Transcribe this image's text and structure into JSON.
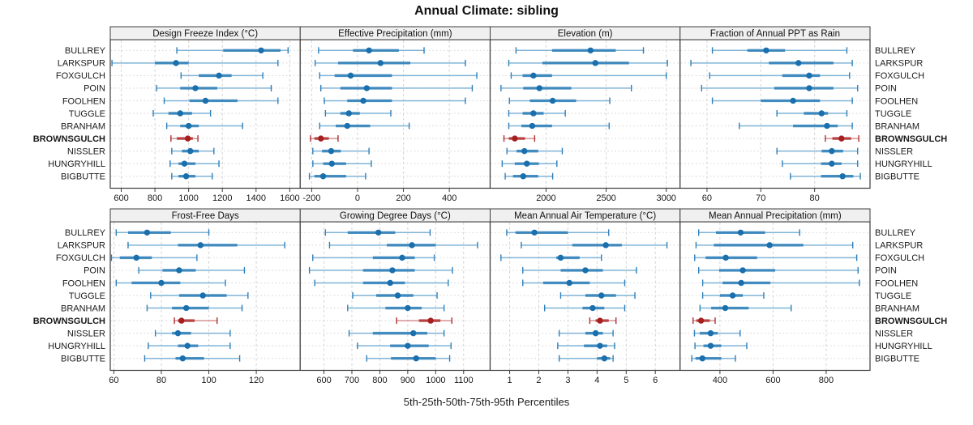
{
  "chart_data": {
    "type": "dot-interval",
    "title": "Annual Climate: sibling",
    "caption": "5th-25th-50th-75th-95th Percentiles",
    "percentile_levels": [
      5,
      25,
      50,
      75,
      95
    ],
    "legend_position": "none",
    "grid": true,
    "sites": [
      "BULLREY",
      "LARKSPUR",
      "FOXGULCH",
      "POIN",
      "FOOLHEN",
      "TUGGLE",
      "BRANHAM",
      "BROWNSGULCH",
      "NISSLER",
      "HUNGRYHILL",
      "BIGBUTTE"
    ],
    "highlight_site": "BROWNSGULCH",
    "colors": {
      "blue_dot": "#1a6fad",
      "blue_mid": "#2e7fb8",
      "blue_thin": "#7fb3d7",
      "red_dot": "#a51f1f",
      "red_mid": "#b03030",
      "red_thin": "#d49090",
      "strip_bg": "#f0f0f0",
      "border": "#3c3c3c",
      "grid": "#d2d2d2",
      "text": "#1a1a1a"
    },
    "panels": [
      {
        "title": "Design Freeze Index (°C)",
        "xlim": [
          535,
          1662
        ],
        "ticks": [
          600,
          800,
          1000,
          1200,
          1400,
          1600
        ],
        "tick_labels": [
          "600",
          "800",
          "1000",
          "1200",
          "1400",
          "1600"
        ],
        "values": [
          [
            930,
            1205,
            1430,
            1545,
            1590
          ],
          [
            545,
            800,
            925,
            1000,
            1530
          ],
          [
            955,
            1060,
            1180,
            1255,
            1440
          ],
          [
            810,
            950,
            1040,
            1170,
            1490
          ],
          [
            855,
            1005,
            1100,
            1290,
            1530
          ],
          [
            790,
            880,
            950,
            1020,
            1130
          ],
          [
            870,
            950,
            1000,
            1060,
            1320
          ],
          [
            895,
            930,
            995,
            1025,
            1055
          ],
          [
            900,
            960,
            1010,
            1060,
            1150
          ],
          [
            890,
            940,
            975,
            1040,
            1180
          ],
          [
            900,
            940,
            985,
            1040,
            1140
          ]
        ]
      },
      {
        "title": "Effective Precipitation (mm)",
        "xlim": [
          -250,
          578
        ],
        "ticks": [
          -200,
          0,
          200,
          400
        ],
        "tick_labels": [
          "-200",
          "0",
          "200",
          "400"
        ],
        "values": [
          [
            -170,
            -20,
            50,
            180,
            290
          ],
          [
            -185,
            -85,
            100,
            230,
            470
          ],
          [
            -165,
            -100,
            -30,
            150,
            520
          ],
          [
            -160,
            -75,
            40,
            150,
            500
          ],
          [
            -145,
            -45,
            25,
            150,
            470
          ],
          [
            -140,
            -75,
            -38,
            10,
            145
          ],
          [
            -165,
            -95,
            -45,
            55,
            225
          ],
          [
            -205,
            -188,
            -160,
            -125,
            -85
          ],
          [
            -195,
            -155,
            -115,
            -73,
            50
          ],
          [
            -195,
            -150,
            -112,
            -50,
            60
          ],
          [
            -210,
            -188,
            -150,
            -50,
            35
          ]
        ]
      },
      {
        "title": "Elevation (m)",
        "xlim": [
          1535,
          3115
        ],
        "ticks": [
          2000,
          2500,
          3000
        ],
        "tick_labels": [
          "2000",
          "2500",
          "3000"
        ],
        "values": [
          [
            1750,
            2050,
            2370,
            2580,
            2810
          ],
          [
            1690,
            1970,
            2410,
            2690,
            3010
          ],
          [
            1710,
            1805,
            1895,
            2050,
            3000
          ],
          [
            1625,
            1810,
            1945,
            2210,
            2710
          ],
          [
            1695,
            1865,
            2055,
            2250,
            2530
          ],
          [
            1690,
            1805,
            1895,
            1980,
            2160
          ],
          [
            1690,
            1795,
            1885,
            2050,
            2525
          ],
          [
            1650,
            1690,
            1740,
            1825,
            1905
          ],
          [
            1675,
            1755,
            1820,
            1935,
            2135
          ],
          [
            1635,
            1740,
            1840,
            1940,
            2090
          ],
          [
            1660,
            1725,
            1810,
            1935,
            2055
          ]
        ]
      },
      {
        "title": "Fraction of Annual PPT as Rain",
        "xlim": [
          55,
          90.3
        ],
        "ticks": [
          60,
          70,
          80
        ],
        "tick_labels": [
          "60",
          "70",
          "80"
        ],
        "values": [
          [
            61,
            67.5,
            71,
            74.5,
            86
          ],
          [
            57,
            71.5,
            77,
            83.5,
            87
          ],
          [
            60.5,
            74,
            79,
            81,
            86.5
          ],
          [
            59,
            72.5,
            79,
            83.5,
            88
          ],
          [
            61,
            70,
            76,
            81,
            87
          ],
          [
            73,
            78,
            81.3,
            82.5,
            86
          ],
          [
            66,
            76,
            82.3,
            84.3,
            87
          ],
          [
            82,
            83.3,
            85,
            86.8,
            88.2
          ],
          [
            73,
            81.3,
            83.2,
            85.3,
            88
          ],
          [
            74,
            81.2,
            83.2,
            85,
            88
          ],
          [
            75.5,
            81.2,
            85.2,
            87.2,
            88.5
          ]
        ]
      },
      {
        "title": "Frost-Free Days",
        "xlim": [
          58.5,
          138.5
        ],
        "ticks": [
          60,
          80,
          100,
          120
        ],
        "tick_labels": [
          "60",
          "80",
          "100",
          "120"
        ],
        "values": [
          [
            61,
            66,
            74,
            84,
            100
          ],
          [
            66,
            87,
            96.5,
            112,
            132
          ],
          [
            59,
            62.5,
            69.5,
            76,
            95
          ],
          [
            70.5,
            80.5,
            87.5,
            94.5,
            115
          ],
          [
            61,
            67.5,
            80,
            88,
            107
          ],
          [
            75.5,
            87.5,
            97.5,
            107.5,
            116.5
          ],
          [
            74,
            84.5,
            90.5,
            100,
            114
          ],
          [
            85.5,
            87,
            88.5,
            94,
            103.5
          ],
          [
            77.5,
            84.5,
            87,
            92.5,
            109
          ],
          [
            74.5,
            87,
            91,
            95.5,
            109
          ],
          [
            73,
            86,
            89,
            98,
            113
          ]
        ]
      },
      {
        "title": "Growing Degree Days (°C)",
        "xlim": [
          515,
          1195
        ],
        "ticks": [
          600,
          700,
          800,
          900,
          1000,
          1100
        ],
        "tick_labels": [
          "600",
          "700",
          "800",
          "900",
          "1000",
          "1100"
        ],
        "values": [
          [
            605,
            685,
            795,
            855,
            980
          ],
          [
            620,
            825,
            915,
            1000,
            1150
          ],
          [
            560,
            775,
            880,
            925,
            995
          ],
          [
            548,
            740,
            845,
            925,
            1060
          ],
          [
            567,
            740,
            837,
            890,
            1045
          ],
          [
            703,
            787,
            864,
            920,
            1005
          ],
          [
            685,
            820,
            900,
            950,
            1030
          ],
          [
            860,
            940,
            982,
            1017,
            1058
          ],
          [
            690,
            775,
            920,
            970,
            1030
          ],
          [
            720,
            837,
            900,
            975,
            1055
          ],
          [
            753,
            840,
            930,
            1000,
            1050
          ]
        ]
      },
      {
        "title": "Mean Annual Air Temperature (°C)",
        "xlim": [
          0.33,
          6.85
        ],
        "ticks": [
          1,
          2,
          3,
          4,
          5,
          6
        ],
        "tick_labels": [
          "1",
          "2",
          "3",
          "4",
          "5",
          "6"
        ],
        "values": [
          [
            0.9,
            1.2,
            1.85,
            3.0,
            4.4
          ],
          [
            1.4,
            3.15,
            4.3,
            4.85,
            6.4
          ],
          [
            0.7,
            2.6,
            2.75,
            3.4,
            4.15
          ],
          [
            1.45,
            2.75,
            3.6,
            4.2,
            5.35
          ],
          [
            1.45,
            2.15,
            3.05,
            3.75,
            4.95
          ],
          [
            2.75,
            3.6,
            4.15,
            4.65,
            5.3
          ],
          [
            2.2,
            3.5,
            3.85,
            4.25,
            4.95
          ],
          [
            3.75,
            3.95,
            4.1,
            4.4,
            4.65
          ],
          [
            2.7,
            3.6,
            3.95,
            4.2,
            4.55
          ],
          [
            2.65,
            3.55,
            4.1,
            4.35,
            4.6
          ],
          [
            2.7,
            4.0,
            4.25,
            4.45,
            4.55
          ]
        ]
      },
      {
        "title": "Mean Annual Precipitation (mm)",
        "xlim": [
          250,
          965
        ],
        "ticks": [
          400,
          600,
          800
        ],
        "tick_labels": [
          "400",
          "600",
          "800"
        ],
        "values": [
          [
            320,
            385,
            478,
            570,
            700
          ],
          [
            310,
            377,
            587,
            714,
            900
          ],
          [
            305,
            346,
            422,
            540,
            915
          ],
          [
            320,
            397,
            486,
            608,
            920
          ],
          [
            335,
            410,
            480,
            590,
            925
          ],
          [
            335,
            400,
            448,
            486,
            565
          ],
          [
            325,
            367,
            420,
            508,
            668
          ],
          [
            299,
            311,
            329,
            362,
            382
          ],
          [
            304,
            324,
            365,
            392,
            476
          ],
          [
            306,
            338,
            365,
            405,
            501
          ],
          [
            294,
            308,
            334,
            405,
            458
          ]
        ]
      }
    ]
  }
}
